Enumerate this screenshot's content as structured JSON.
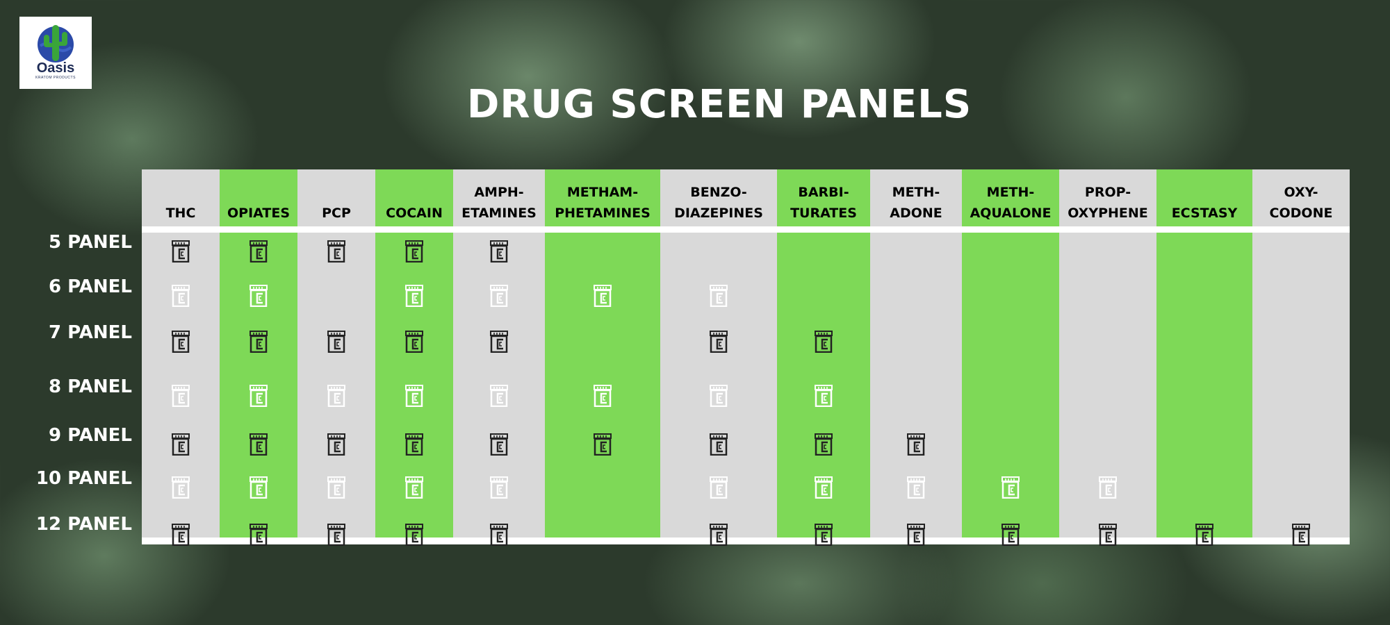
{
  "logo": {
    "name": "Oasis",
    "tagline": "KRATOM PRODUCTS"
  },
  "title": "DRUG SCREEN PANELS",
  "colors": {
    "green": "#7ed957",
    "gray": "#d9d9d9",
    "icon_dark": "#222222",
    "icon_light": "#ffffff"
  },
  "columns": [
    {
      "label": "THC",
      "style": "gray"
    },
    {
      "label": "OPIATES",
      "style": "green"
    },
    {
      "label": "PCP",
      "style": "gray"
    },
    {
      "label": "COCAIN",
      "style": "green"
    },
    {
      "label": "AMPH-\nETAMINES",
      "style": "gray"
    },
    {
      "label": "METHAM-\nPHETAMINES",
      "style": "green"
    },
    {
      "label": "BENZO-\nDIAZEPINES",
      "style": "gray"
    },
    {
      "label": "BARBI-\nTURATES",
      "style": "green"
    },
    {
      "label": "METH-\nADONE",
      "style": "gray"
    },
    {
      "label": "METH-\nAQUALONE",
      "style": "green"
    },
    {
      "label": "PROP-\nOXYPHENE",
      "style": "gray"
    },
    {
      "label": "ECSTASY",
      "style": "green"
    },
    {
      "label": "OXY-\nCODONE",
      "style": "gray"
    }
  ],
  "rows": [
    {
      "label": "5 PANEL",
      "icon": "dark",
      "included": [
        1,
        1,
        1,
        1,
        1,
        0,
        0,
        0,
        0,
        0,
        0,
        0,
        0
      ]
    },
    {
      "label": "6 PANEL",
      "icon": "light",
      "included": [
        1,
        1,
        0,
        1,
        1,
        1,
        1,
        0,
        0,
        0,
        0,
        0,
        0
      ]
    },
    {
      "label": "7 PANEL",
      "icon": "dark",
      "included": [
        1,
        1,
        1,
        1,
        1,
        0,
        1,
        1,
        0,
        0,
        0,
        0,
        0
      ]
    },
    {
      "label": "8 PANEL",
      "icon": "light",
      "included": [
        1,
        1,
        1,
        1,
        1,
        1,
        1,
        1,
        0,
        0,
        0,
        0,
        0
      ]
    },
    {
      "label": "9 PANEL",
      "icon": "dark",
      "included": [
        1,
        1,
        1,
        1,
        1,
        1,
        1,
        1,
        1,
        0,
        0,
        0,
        0
      ]
    },
    {
      "label": "10 PANEL",
      "icon": "light",
      "included": [
        1,
        1,
        1,
        1,
        1,
        0,
        1,
        1,
        1,
        1,
        1,
        0,
        0
      ]
    },
    {
      "label": "12 PANEL",
      "icon": "dark",
      "included": [
        1,
        1,
        1,
        1,
        1,
        0,
        1,
        1,
        1,
        1,
        1,
        1,
        1
      ]
    }
  ],
  "icon_name": "specimen-cup-icon"
}
